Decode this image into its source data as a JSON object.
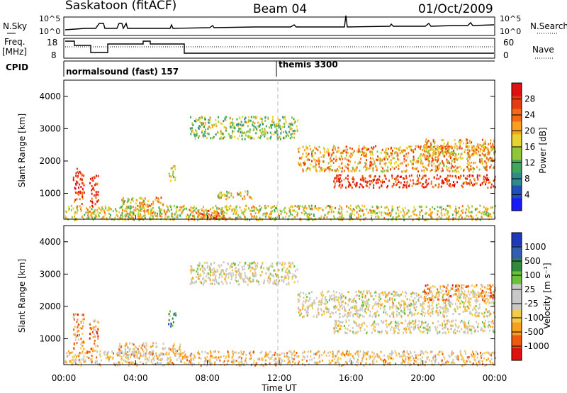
{
  "header": {
    "station": "Saskatoon (fitACF)",
    "beam": "Beam 04",
    "date": "01/Oct/2009"
  },
  "top_panel": {
    "left_label": "N.Sky",
    "left_ticks": [
      "10^5",
      "10^0"
    ],
    "right_ticks": [
      "10^5",
      "10^0"
    ],
    "right_label": "N.Search"
  },
  "freq_panel": {
    "left_label_1": "Freq.",
    "left_label_2": "[MHz]",
    "left_ticks": [
      "18",
      "8"
    ],
    "right_ticks": [
      "60",
      "0"
    ],
    "right_label": "Nave"
  },
  "cpid_panel": {
    "label": "CPID",
    "mode_1": "normalsound (fast) 157",
    "mode_2": "themis 3300"
  },
  "chart_data": [
    {
      "type": "heatmap",
      "name": "power",
      "ylabel": "Slant Range [km]",
      "yticks": [
        "1000",
        "2000",
        "3000",
        "4000"
      ],
      "ylim": [
        200,
        4500
      ],
      "xlim": [
        0,
        24
      ],
      "colorbar": {
        "label": "Power [dB]",
        "ticks": [
          "4",
          "8",
          "12",
          "16",
          "20",
          "24",
          "28"
        ],
        "colors": [
          "#1a1aff",
          "#1f50b8",
          "#2f8a8f",
          "#3fa65a",
          "#8fc63a",
          "#e8d230",
          "#f7a020",
          "#f06a18",
          "#e53a12",
          "#e01010"
        ]
      },
      "scatter_regions": [
        {
          "t0": 0.5,
          "t1": 1.1,
          "r0": 700,
          "r1": 1800,
          "level": 8
        },
        {
          "t0": 1.4,
          "t1": 1.9,
          "r0": 600,
          "r1": 1600,
          "level": 8
        },
        {
          "t0": 3.2,
          "t1": 4.5,
          "r0": 200,
          "r1": 900,
          "level": 5
        },
        {
          "t0": 4.0,
          "t1": 5.5,
          "r0": 650,
          "r1": 900,
          "level": 6
        },
        {
          "t0": 5.8,
          "t1": 6.2,
          "r0": 1400,
          "r1": 1900,
          "level": 4
        },
        {
          "t0": 7.0,
          "t1": 9.0,
          "r0": 200,
          "r1": 500,
          "level": 8
        },
        {
          "t0": 8.5,
          "t1": 10.5,
          "r0": 850,
          "r1": 1100,
          "level": 5
        },
        {
          "t0": 7.0,
          "t1": 13.0,
          "r0": 2700,
          "r1": 3400,
          "level": 4
        },
        {
          "t0": 13.0,
          "t1": 24.0,
          "r0": 1700,
          "r1": 2500,
          "level": 6
        },
        {
          "t0": 15.0,
          "t1": 24.0,
          "r0": 1200,
          "r1": 1600,
          "level": 8
        },
        {
          "t0": 20.0,
          "t1": 24.0,
          "r0": 2200,
          "r1": 2700,
          "level": 6
        },
        {
          "t0": 0.0,
          "t1": 24.0,
          "r0": 200,
          "r1": 650,
          "level": 5
        }
      ]
    },
    {
      "type": "heatmap",
      "name": "velocity",
      "ylabel": "Slant Range [km]",
      "yticks": [
        "1000",
        "2000",
        "3000",
        "4000"
      ],
      "ylim": [
        200,
        4500
      ],
      "xlim": [
        0,
        24
      ],
      "xticks": [
        "00:00",
        "04:00",
        "08:00",
        "12:00",
        "16:00",
        "20:00",
        "00:00"
      ],
      "xlabel": "Time UT",
      "colorbar": {
        "label": "Velocity [m s⁻¹]",
        "ticks": [
          "-1000",
          "-500",
          "-100",
          "-25",
          "25",
          "100",
          "500",
          "1000"
        ],
        "colors": [
          "#e01010",
          "#f05a10",
          "#f7a020",
          "#f7c850",
          "#c8c8c8",
          "#c8c8c8",
          "#66c23a",
          "#2f8a3a",
          "#2f5fb0",
          "#1f3ab8"
        ]
      },
      "scatter_regions": [
        {
          "t0": 0.5,
          "t1": 1.1,
          "r0": 700,
          "r1": 1800,
          "level": 2
        },
        {
          "t0": 1.4,
          "t1": 1.9,
          "r0": 600,
          "r1": 1600,
          "level": 2
        },
        {
          "t0": 3.0,
          "t1": 6.5,
          "r0": 500,
          "r1": 900,
          "level": 3
        },
        {
          "t0": 5.8,
          "t1": 6.2,
          "r0": 1400,
          "r1": 1900,
          "level": 7
        },
        {
          "t0": 7.0,
          "t1": 13.0,
          "r0": 2700,
          "r1": 3400,
          "level": 4
        },
        {
          "t0": 13.0,
          "t1": 24.0,
          "r0": 1700,
          "r1": 2500,
          "level": 4
        },
        {
          "t0": 15.0,
          "t1": 24.0,
          "r0": 1200,
          "r1": 1600,
          "level": 4
        },
        {
          "t0": 20.0,
          "t1": 24.0,
          "r0": 2200,
          "r1": 2700,
          "level": 2
        },
        {
          "t0": 0.0,
          "t1": 24.0,
          "r0": 200,
          "r1": 650,
          "level": 3
        }
      ]
    }
  ]
}
